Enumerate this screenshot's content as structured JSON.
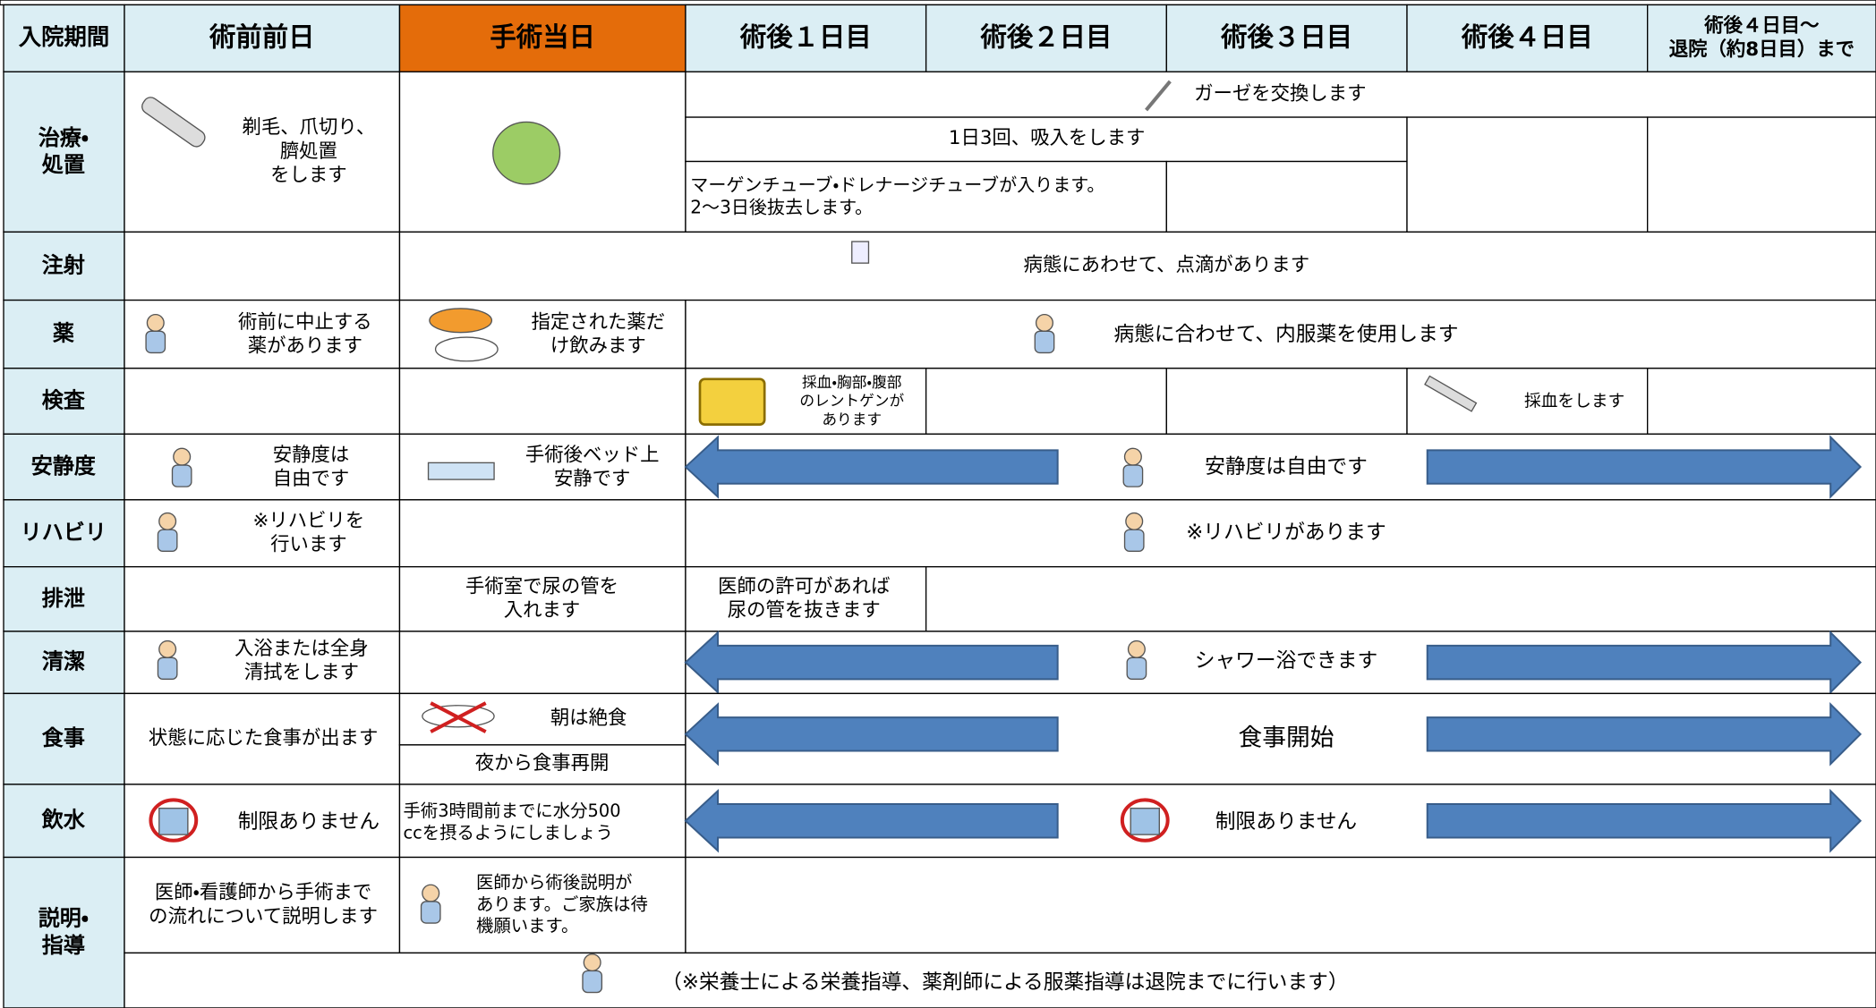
{
  "header": {
    "columns": [
      [
        "入院期間"
      ],
      [
        "術前前日"
      ],
      [
        "手術当日"
      ],
      [
        "術後１日目"
      ],
      [
        "術後２日目"
      ],
      [
        "術後３日目"
      ],
      [
        "術後４日目"
      ],
      [
        "術後４日目〜",
        "退院（約8日目）まで"
      ]
    ]
  },
  "rows": [
    {
      "label": [
        "治療・",
        "処置"
      ],
      "cells": [
        [
          "剃毛、爪切り、",
          "臍処置",
          "をします"
        ],
        [
          "ガーゼを交換します"
        ],
        [
          "1日3回、吸入をします"
        ],
        [
          "マーゲンチューブ・ドレナージチューブが入ります。",
          "2〜3日後抜去します。"
        ]
      ]
    },
    {
      "label": [
        "注射"
      ],
      "cells": [
        [
          "病態にあわせて、点滴があります"
        ]
      ]
    },
    {
      "label": [
        "薬"
      ],
      "cells": [
        [
          "術前に中止する",
          "薬があります"
        ],
        [
          "指定された薬だ",
          "け飲みます"
        ],
        [
          "病態に合わせて、内服薬を使用します"
        ]
      ]
    },
    {
      "label": [
        "検査"
      ],
      "cells": [
        [
          "採血・胸部・腹部",
          "のレントゲンが",
          "あります"
        ],
        [
          "採血をします"
        ]
      ]
    },
    {
      "label": [
        "安静度"
      ],
      "cells": [
        [
          "安静度は",
          "自由です"
        ],
        [
          "手術後ベッド上",
          "安静です"
        ],
        [
          "安静度は自由です"
        ]
      ]
    },
    {
      "label": [
        "リハビリ"
      ],
      "cells": [
        [
          "※リハビリを",
          "行います"
        ],
        [
          "※リハビリがあります"
        ]
      ]
    },
    {
      "label": [
        "排泄"
      ],
      "cells": [
        [
          "手術室で尿の管を",
          "入れます"
        ],
        [
          "医師の許可があれば",
          "尿の管を抜きます"
        ]
      ]
    },
    {
      "label": [
        "清潔"
      ],
      "cells": [
        [
          "入浴または全身",
          "清拭をします"
        ],
        [
          "シャワー浴できます"
        ]
      ]
    },
    {
      "label": [
        "食事"
      ],
      "cells": [
        [
          "状態に応じた食事が出ます"
        ],
        [
          "朝は絶食"
        ],
        [
          "夜から食事再開"
        ],
        [
          "食事開始"
        ]
      ]
    },
    {
      "label": [
        "飲水"
      ],
      "cells": [
        [
          "制限ありません"
        ],
        [
          "手術3時間前までに水分500",
          "ccを摂るようにしましょう"
        ],
        [
          "制限ありません"
        ]
      ]
    },
    {
      "label": [
        "説明・",
        "指導"
      ],
      "cells": [
        [
          "医師・看護師から手術まで",
          "の流れについて説明します"
        ],
        [
          "医師から術後説明が",
          "あります。ご家族は待",
          "機願います。"
        ],
        [
          "（※栄養士による栄養指導、薬剤師による服薬指導は退院までに行います）"
        ]
      ]
    }
  ]
}
